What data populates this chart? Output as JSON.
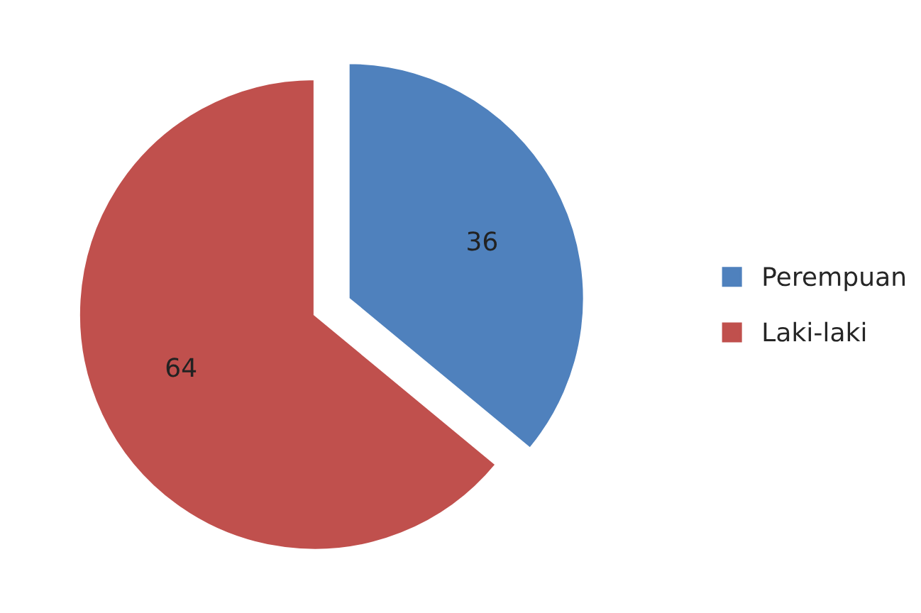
{
  "chart_data": {
    "type": "pie",
    "categories": [
      "Perempuan",
      "Laki-laki"
    ],
    "values": [
      36,
      64
    ],
    "colors": [
      "#4f81bd",
      "#c0504d"
    ],
    "data_labels": true,
    "legend": "right"
  }
}
